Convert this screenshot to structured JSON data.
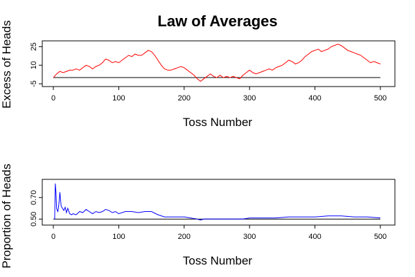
{
  "chart_data": [
    {
      "type": "line",
      "title": "Law of Averages",
      "xlabel": "Toss Number",
      "ylabel": "Excess of Heads",
      "xlim": [
        0,
        500
      ],
      "ylim": [
        -5,
        28
      ],
      "x_ticks": [
        0,
        100,
        200,
        300,
        400,
        500
      ],
      "y_ticks": [
        -5,
        10,
        25
      ],
      "reference_line": 0,
      "color": "#ff0000",
      "grid": false,
      "series": [
        {
          "x": [
            0,
            5,
            10,
            15,
            20,
            25,
            30,
            35,
            40,
            45,
            50,
            55,
            60,
            65,
            70,
            75,
            80,
            85,
            90,
            95,
            100,
            105,
            110,
            115,
            120,
            125,
            130,
            135,
            140,
            145,
            150,
            155,
            160,
            165,
            170,
            175,
            180,
            185,
            190,
            195,
            200,
            205,
            210,
            215,
            220,
            225,
            230,
            235,
            240,
            245,
            250,
            255,
            260,
            265,
            270,
            275,
            280,
            285,
            290,
            295,
            300,
            305,
            310,
            315,
            320,
            325,
            330,
            335,
            340,
            345,
            350,
            355,
            360,
            365,
            370,
            375,
            380,
            385,
            390,
            395,
            400,
            405,
            410,
            415,
            420,
            425,
            430,
            435,
            440,
            445,
            450,
            455,
            460,
            465,
            470,
            475,
            480,
            485,
            490,
            495,
            500
          ],
          "values": [
            0,
            3,
            5,
            4,
            5,
            6,
            6,
            7,
            6,
            8,
            10,
            9,
            7,
            9,
            10,
            12,
            15,
            14,
            12,
            13,
            12,
            14,
            16,
            18,
            17,
            19,
            18,
            18,
            20,
            22,
            21,
            18,
            14,
            10,
            7,
            6,
            6,
            7,
            8,
            9,
            8,
            6,
            4,
            2,
            -1,
            -3,
            -1,
            1,
            3,
            1,
            0,
            2,
            0,
            1,
            0,
            1,
            0,
            -1,
            2,
            4,
            6,
            4,
            3,
            4,
            5,
            6,
            7,
            6,
            8,
            9,
            10,
            12,
            14,
            13,
            11,
            12,
            14,
            17,
            19,
            21,
            22,
            23,
            21,
            22,
            23,
            25,
            26,
            27,
            26,
            24,
            22,
            21,
            20,
            19,
            18,
            16,
            14,
            12,
            13,
            12,
            11
          ]
        }
      ]
    },
    {
      "type": "line",
      "title": "",
      "xlabel": "Toss Number",
      "ylabel": "Proportion of Heads",
      "xlim": [
        0,
        500
      ],
      "ylim": [
        0.47,
        0.85
      ],
      "x_ticks": [
        0,
        100,
        200,
        300,
        400,
        500
      ],
      "y_ticks": [
        0.5,
        0.7
      ],
      "y_tick_labels": [
        "0.50",
        "0.70"
      ],
      "reference_line": 0.5,
      "color": "#0000ff",
      "grid": false,
      "series": [
        {
          "x": [
            1,
            2,
            3,
            4,
            5,
            6,
            7,
            8,
            9,
            10,
            12,
            14,
            16,
            18,
            20,
            22,
            25,
            28,
            30,
            35,
            40,
            45,
            50,
            55,
            60,
            65,
            70,
            75,
            80,
            85,
            90,
            95,
            100,
            110,
            120,
            130,
            140,
            150,
            160,
            170,
            180,
            190,
            200,
            210,
            220,
            225,
            230,
            240,
            250,
            260,
            270,
            280,
            290,
            300,
            320,
            340,
            360,
            380,
            400,
            420,
            440,
            460,
            480,
            500
          ],
          "values": [
            0.5,
            0.5,
            0.83,
            0.75,
            0.6,
            0.58,
            0.57,
            0.62,
            0.67,
            0.75,
            0.62,
            0.6,
            0.58,
            0.61,
            0.56,
            0.6,
            0.55,
            0.54,
            0.55,
            0.54,
            0.57,
            0.56,
            0.59,
            0.57,
            0.55,
            0.57,
            0.56,
            0.57,
            0.59,
            0.58,
            0.56,
            0.57,
            0.55,
            0.57,
            0.57,
            0.56,
            0.57,
            0.57,
            0.54,
            0.52,
            0.52,
            0.52,
            0.52,
            0.51,
            0.5,
            0.49,
            0.5,
            0.5,
            0.5,
            0.5,
            0.5,
            0.5,
            0.5,
            0.51,
            0.51,
            0.51,
            0.52,
            0.52,
            0.52,
            0.53,
            0.53,
            0.52,
            0.52,
            0.51
          ]
        }
      ]
    }
  ]
}
